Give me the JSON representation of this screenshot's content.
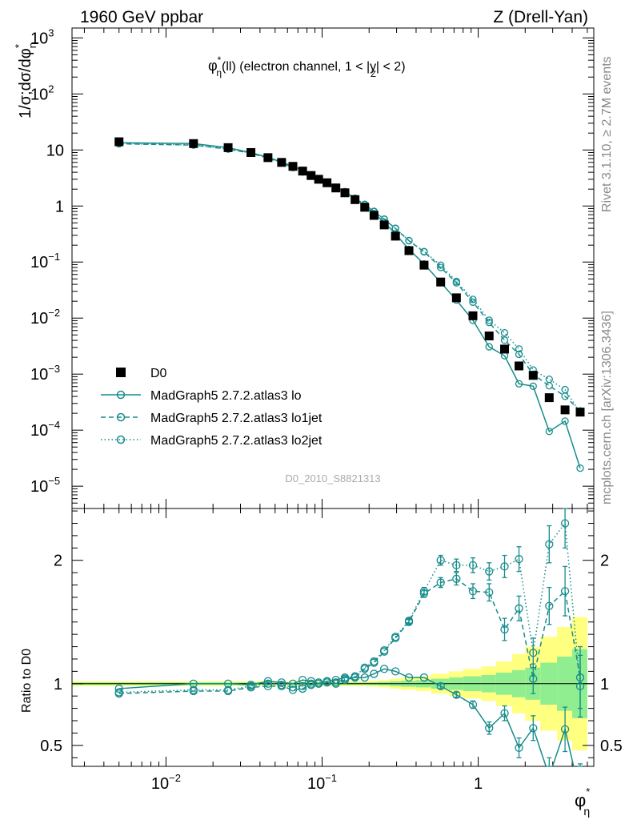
{
  "header": {
    "left": "1960 GeV ppbar",
    "right": "Z (Drell-Yan)"
  },
  "side_text": {
    "rivet": "Rivet 3.1.10, ≥ 2.7M events",
    "mcplots": "mcplots.cern.ch [arXiv:1306.3436]"
  },
  "watermark": "D0_2010_S8821313",
  "plot_title": {
    "main": "φ",
    "sup": "*",
    "sub": "η",
    "rest1": "(ll) (electron channel, 1 < |",
    "y": "y",
    "ysub": "Z",
    "rest2": "| < 2)"
  },
  "ylabel_top": {
    "pre": "1/σ;dσ/dφ",
    "sub": "η",
    "sup": "*"
  },
  "ylabel_bottom": "Ratio to D0",
  "xlabel": {
    "main": "φ",
    "sup": "*",
    "sub": "η"
  },
  "colors": {
    "data": "#000000",
    "mc": "#178c8c",
    "band_inner": "#90ee90",
    "band_outer": "#ffff80"
  },
  "legend": [
    {
      "label": "D0",
      "style": "square"
    },
    {
      "label": "MadGraph5 2.7.2.atlas3 lo",
      "style": "solid"
    },
    {
      "label": "MadGraph5 2.7.2.atlas3 lo1jet",
      "style": "dashed"
    },
    {
      "label": "MadGraph5 2.7.2.atlas3 lo2jet",
      "style": "dotted"
    }
  ],
  "chart_data": {
    "type": "scatter",
    "x_scale": "log",
    "y_scale": "log",
    "xlim": [
      0.0025,
      5.5
    ],
    "ylim_top": [
      4e-06,
      1500
    ],
    "ylim_bottom": [
      0.33,
      2.42
    ],
    "top_yticks": [
      {
        "v": 1e-05,
        "b": "10",
        "e": "−5"
      },
      {
        "v": 0.0001,
        "b": "10",
        "e": "−4"
      },
      {
        "v": 0.001,
        "b": "10",
        "e": "−3"
      },
      {
        "v": 0.01,
        "b": "10",
        "e": "−2"
      },
      {
        "v": 0.1,
        "b": "10",
        "e": "−1"
      },
      {
        "v": 1,
        "b": "1",
        "e": ""
      },
      {
        "v": 10,
        "b": "10",
        "e": ""
      },
      {
        "v": 100,
        "b": "10",
        "e": "2"
      },
      {
        "v": 1000,
        "b": "10",
        "e": "3"
      }
    ],
    "bottom_yticks": [
      {
        "v": 0.5,
        "label": "0.5"
      },
      {
        "v": 1,
        "label": "1"
      },
      {
        "v": 2,
        "label": "2"
      }
    ],
    "xticks": [
      {
        "v": 0.01,
        "b": "10",
        "e": "−2"
      },
      {
        "v": 0.1,
        "b": "10",
        "e": "−1"
      },
      {
        "v": 1,
        "b": "1",
        "e": ""
      }
    ],
    "bins": [
      0,
      0.01,
      0.02,
      0.03,
      0.04,
      0.05,
      0.06,
      0.07,
      0.08,
      0.09,
      0.1,
      0.115,
      0.13,
      0.15,
      0.175,
      0.2,
      0.23,
      0.27,
      0.32,
      0.4,
      0.5,
      0.65,
      0.8,
      1.05,
      1.3,
      1.65,
      2,
      2.5,
      3.2,
      4.0,
      5.0
    ],
    "x": [
      0.005,
      0.015,
      0.025,
      0.035,
      0.045,
      0.055,
      0.065,
      0.075,
      0.085,
      0.095,
      0.1075,
      0.1225,
      0.14,
      0.1625,
      0.1875,
      0.215,
      0.25,
      0.295,
      0.36,
      0.45,
      0.575,
      0.725,
      0.925,
      1.175,
      1.475,
      1.825,
      2.25,
      2.85,
      3.6,
      4.5
    ],
    "series": [
      {
        "name": "D0",
        "values": [
          14.0,
          13.0,
          11.0,
          9.0,
          7.3,
          6.0,
          5.1,
          4.2,
          3.5,
          3.0,
          2.6,
          2.1,
          1.72,
          1.3,
          0.95,
          0.68,
          0.46,
          0.29,
          0.16,
          0.088,
          0.044,
          0.023,
          0.011,
          0.0048,
          0.0028,
          0.0014,
          0.00095,
          0.00038,
          0.00023,
          0.00021
        ],
        "band_inner": [
          0.01,
          0.01,
          0.01,
          0.01,
          0.01,
          0.01,
          0.01,
          0.01,
          0.01,
          0.01,
          0.01,
          0.01,
          0.01,
          0.01,
          0.01,
          0.012,
          0.015,
          0.02,
          0.025,
          0.03,
          0.04,
          0.05,
          0.06,
          0.07,
          0.09,
          0.11,
          0.13,
          0.17,
          0.22,
          0.28
        ],
        "band_outer": [
          0.02,
          0.02,
          0.02,
          0.02,
          0.02,
          0.02,
          0.02,
          0.02,
          0.02,
          0.02,
          0.02,
          0.02,
          0.02,
          0.02,
          0.02,
          0.025,
          0.03,
          0.04,
          0.05,
          0.06,
          0.08,
          0.1,
          0.12,
          0.14,
          0.18,
          0.24,
          0.3,
          0.38,
          0.46,
          0.54
        ]
      },
      {
        "name": "MadGraph5 2.7.2.atlas3 lo",
        "style": "solid",
        "ratio": [
          0.96,
          1.0,
          1.0,
          0.99,
          1.02,
          1.01,
          1.0,
          1.03,
          1.02,
          1.0,
          1.02,
          1.03,
          1.05,
          1.05,
          1.05,
          1.08,
          1.12,
          1.1,
          1.05,
          1.05,
          0.98,
          0.91,
          0.83,
          0.64,
          0.76,
          0.48,
          0.64,
          0.25,
          0.63,
          0.1
        ],
        "ratio_err": [
          0.01,
          0.01,
          0.01,
          0.01,
          0.01,
          0.01,
          0.01,
          0.01,
          0.01,
          0.01,
          0.01,
          0.01,
          0.01,
          0.01,
          0.01,
          0.01,
          0.01,
          0.01,
          0.01,
          0.01,
          0.02,
          0.02,
          0.03,
          0.05,
          0.06,
          0.08,
          0.1,
          0.15,
          0.18,
          0.25
        ]
      },
      {
        "name": "MadGraph5 2.7.2.atlas3 lo1jet",
        "style": "dashed",
        "ratio": [
          0.92,
          0.94,
          0.94,
          0.97,
          0.98,
          0.98,
          0.95,
          0.96,
          0.99,
          1.0,
          1.01,
          1.0,
          1.03,
          1.05,
          1.12,
          1.17,
          1.26,
          1.37,
          1.5,
          1.73,
          1.82,
          1.85,
          1.75,
          1.74,
          1.44,
          1.61,
          1.04,
          1.63,
          1.75,
          1.05
        ],
        "ratio_err": [
          0.01,
          0.01,
          0.01,
          0.01,
          0.01,
          0.01,
          0.01,
          0.01,
          0.01,
          0.01,
          0.01,
          0.01,
          0.01,
          0.01,
          0.01,
          0.01,
          0.01,
          0.01,
          0.02,
          0.03,
          0.04,
          0.05,
          0.06,
          0.07,
          0.09,
          0.1,
          0.12,
          0.15,
          0.2,
          0.25
        ]
      },
      {
        "name": "MadGraph5 2.7.2.atlas3 lo2jet",
        "style": "dotted",
        "ratio": [
          0.93,
          0.95,
          0.95,
          0.98,
          1.0,
          0.99,
          0.97,
          0.98,
          1.0,
          1.01,
          1.02,
          1.01,
          1.04,
          1.06,
          1.13,
          1.18,
          1.27,
          1.38,
          1.51,
          1.75,
          2.0,
          1.96,
          1.96,
          1.91,
          1.95,
          2.01,
          1.25,
          2.13,
          2.3,
          0.98
        ],
        "ratio_err": [
          0.01,
          0.01,
          0.01,
          0.01,
          0.01,
          0.01,
          0.01,
          0.01,
          0.01,
          0.01,
          0.01,
          0.01,
          0.01,
          0.01,
          0.01,
          0.01,
          0.01,
          0.01,
          0.02,
          0.03,
          0.04,
          0.05,
          0.06,
          0.07,
          0.09,
          0.1,
          0.12,
          0.15,
          0.2,
          0.25
        ]
      }
    ]
  }
}
